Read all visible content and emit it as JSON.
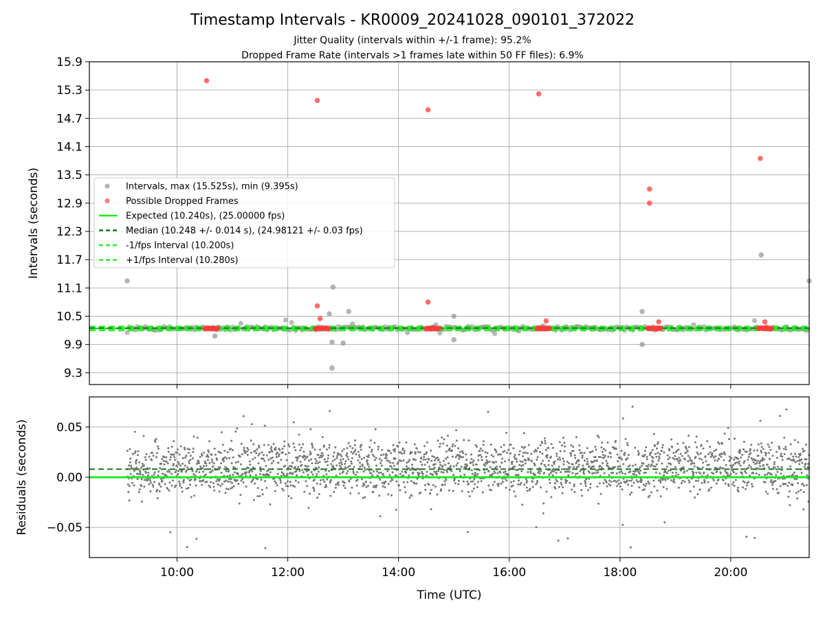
{
  "figure": {
    "title": "Timestamp Intervals - KR0009_20241028_090101_372022",
    "subtitle_1": "Jitter Quality (intervals within +/-1 frame): 95.2%",
    "subtitle_2": "Dropped Frame Rate (intervals >1 frames late within 50 FF files): 6.9%",
    "xlabel": "Time (UTC)"
  },
  "colors": {
    "intervals": "#8c8c8c",
    "dropped": "#ff3b3b",
    "expected": "#1ee81e",
    "median": "#137a13",
    "fps_band": "#2ee82e",
    "grid": "#b0b0b0",
    "residuals": "#777777"
  },
  "chart_data": [
    {
      "type": "scatter",
      "title": "",
      "xlabel": "",
      "ylabel": "Intervals (seconds)",
      "xlim": [
        "08:25",
        "21:25"
      ],
      "ylim": [
        9.05,
        15.9
      ],
      "x_ticks": [
        "10:00",
        "12:00",
        "14:00",
        "16:00",
        "18:00",
        "20:00"
      ],
      "y_ticks": [
        "9.3",
        "9.9",
        "10.5",
        "11.1",
        "11.7",
        "12.3",
        "12.9",
        "13.5",
        "14.1",
        "14.7",
        "15.3",
        "15.9"
      ],
      "grid": true,
      "legend_position": "center-left",
      "series": [
        {
          "name": "Intervals, max (15.525s), min (9.395s)",
          "marker": "circle",
          "x_range": [
            "09:06",
            "21:25"
          ],
          "typical_band": [
            10.2,
            10.28
          ],
          "outliers": [
            {
              "x": "09:06",
              "y": 11.25
            },
            {
              "x": "10:41",
              "y": 10.08
            },
            {
              "x": "12:45",
              "y": 10.55
            },
            {
              "x": "12:49",
              "y": 11.12
            },
            {
              "x": "12:48",
              "y": 9.95
            },
            {
              "x": "12:48",
              "y": 9.4
            },
            {
              "x": "13:06",
              "y": 10.6
            },
            {
              "x": "13:00",
              "y": 9.93
            },
            {
              "x": "15:00",
              "y": 10.5
            },
            {
              "x": "15:00",
              "y": 10.0
            },
            {
              "x": "18:24",
              "y": 10.6
            },
            {
              "x": "18:24",
              "y": 9.9
            },
            {
              "x": "20:33",
              "y": 11.8
            },
            {
              "x": "21:25",
              "y": 11.25
            }
          ]
        },
        {
          "name": "Possible Dropped Frames",
          "marker": "circle",
          "points": [
            {
              "x": "10:32",
              "y": 15.5
            },
            {
              "x": "12:32",
              "y": 15.08
            },
            {
              "x": "14:32",
              "y": 14.88
            },
            {
              "x": "16:32",
              "y": 15.22
            },
            {
              "x": "18:32",
              "y": 13.2
            },
            {
              "x": "18:32",
              "y": 12.9
            },
            {
              "x": "20:32",
              "y": 13.85
            },
            {
              "x": "12:32",
              "y": 10.72
            },
            {
              "x": "12:35",
              "y": 10.45
            },
            {
              "x": "14:32",
              "y": 10.8
            },
            {
              "x": "16:40",
              "y": 10.4
            },
            {
              "x": "18:42",
              "y": 10.38
            },
            {
              "x": "20:37",
              "y": 10.38
            }
          ],
          "clusters": [
            {
              "x_range": [
                "10:30",
                "10:44"
              ],
              "y": 10.24
            },
            {
              "x_range": [
                "12:30",
                "12:44"
              ],
              "y": 10.24
            },
            {
              "x_range": [
                "14:30",
                "14:44"
              ],
              "y": 10.24
            },
            {
              "x_range": [
                "16:30",
                "16:44"
              ],
              "y": 10.24
            },
            {
              "x_range": [
                "18:30",
                "18:44"
              ],
              "y": 10.24
            },
            {
              "x_range": [
                "20:30",
                "20:44"
              ],
              "y": 10.24
            }
          ]
        },
        {
          "name": "Expected (10.240s), (25.00000 fps)",
          "line": "solid",
          "y": 10.24
        },
        {
          "name": "Median (10.248 +/- 0.014 s), (24.98121 +/- 0.03 fps)",
          "line": "dashed",
          "y": 10.248
        },
        {
          "name": "-1/fps Interval (10.200s)",
          "line": "dashed",
          "y": 10.2
        },
        {
          "name": "+1/fps Interval (10.280s)",
          "line": "dashed",
          "y": 10.28
        }
      ]
    },
    {
      "type": "scatter",
      "title": "",
      "xlabel": "Time (UTC)",
      "ylabel": "Residuals (seconds)",
      "xlim": [
        "08:25",
        "21:25"
      ],
      "ylim": [
        -0.08,
        0.08
      ],
      "x_ticks": [
        "10:00",
        "12:00",
        "14:00",
        "16:00",
        "18:00",
        "20:00"
      ],
      "y_ticks": [
        "0.05",
        "0.00",
        "−0.05"
      ],
      "grid": true,
      "series": [
        {
          "name": "",
          "marker": "dot",
          "x_range": [
            "09:06",
            "21:25"
          ],
          "bands": [
            0.0,
            0.02
          ],
          "spread": 0.04
        }
      ],
      "reference_lines": [
        {
          "y": 0.0,
          "line": "solid"
        },
        {
          "y": 0.008,
          "line": "dashed"
        }
      ]
    }
  ]
}
